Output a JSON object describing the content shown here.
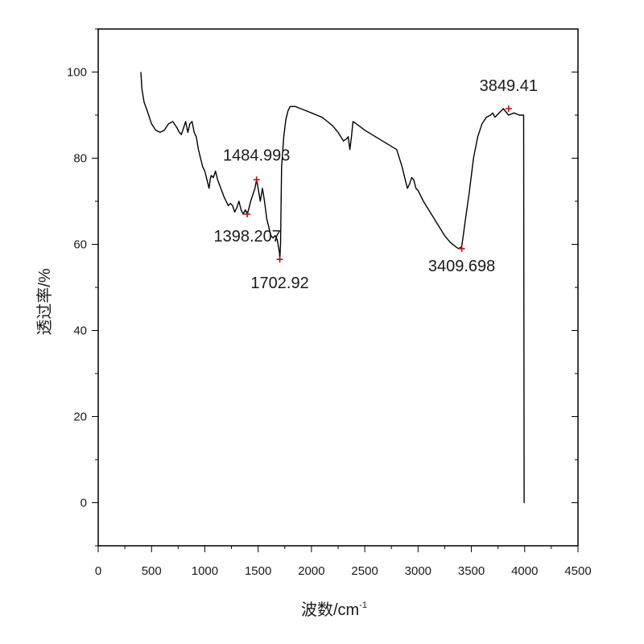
{
  "chart_data": {
    "type": "line",
    "xlabel": "波数/cm",
    "xlabel_sup": "-1",
    "ylabel": "透过率/%",
    "xlim": [
      0,
      4500
    ],
    "ylim": [
      -10,
      110
    ],
    "xticks": [
      0,
      500,
      1000,
      1500,
      2000,
      2500,
      3000,
      3500,
      4000,
      4500
    ],
    "yticks": [
      0,
      20,
      40,
      60,
      80,
      100
    ],
    "grid": false,
    "legend": "none",
    "line_color": "#000000",
    "marker_color": "#cc0000",
    "series": [
      {
        "x": [
          400,
          410,
          430,
          460,
          500,
          540,
          580,
          620,
          660,
          700,
          740,
          760,
          780,
          800,
          820,
          840,
          860,
          880,
          900,
          920,
          940,
          960,
          980,
          1000,
          1020,
          1040,
          1050,
          1060,
          1080,
          1100,
          1120,
          1150,
          1180,
          1200,
          1220,
          1240,
          1260,
          1280,
          1300,
          1320,
          1340,
          1360,
          1380,
          1398,
          1410,
          1430,
          1450,
          1470,
          1485,
          1500,
          1520,
          1540,
          1560,
          1580,
          1600,
          1620,
          1640,
          1660,
          1680,
          1700,
          1703,
          1710,
          1720,
          1740,
          1760,
          1780,
          1800,
          1820,
          1850,
          1900,
          1950,
          2000,
          2050,
          2100,
          2150,
          2200,
          2250,
          2300,
          2330,
          2345,
          2360,
          2375,
          2390,
          2420,
          2500,
          2600,
          2700,
          2800,
          2850,
          2880,
          2900,
          2920,
          2940,
          2960,
          2980,
          3000,
          3050,
          3100,
          3150,
          3200,
          3250,
          3300,
          3350,
          3380,
          3410,
          3440,
          3480,
          3520,
          3560,
          3600,
          3640,
          3680,
          3700,
          3720,
          3760,
          3800,
          3849,
          3900,
          3950,
          3980,
          3990,
          3995,
          3998
        ],
        "y": [
          100,
          96,
          93,
          91,
          88,
          86.5,
          86,
          86.5,
          88,
          88.5,
          87,
          86,
          85.5,
          87,
          88.5,
          86,
          88,
          88.5,
          86,
          85,
          82,
          80,
          78,
          77,
          75,
          73,
          75,
          76,
          75.5,
          77,
          75,
          73,
          71,
          70,
          69,
          69.5,
          69,
          67.5,
          68.5,
          70,
          68,
          67,
          68,
          67,
          68,
          70,
          71.5,
          73,
          75,
          73,
          70,
          73,
          70,
          66,
          64,
          62,
          61.5,
          62,
          61,
          58,
          56.5,
          60,
          78,
          85,
          89,
          91,
          92,
          92,
          92,
          91.5,
          91,
          90.5,
          90,
          89.5,
          88.5,
          87.5,
          86,
          84,
          84.5,
          85,
          82,
          85,
          88.5,
          88,
          86.5,
          85,
          83.5,
          82,
          78,
          75,
          73,
          74,
          75.5,
          75,
          73,
          72.5,
          70,
          68,
          66,
          64,
          62,
          60.5,
          59.5,
          59,
          59.5,
          65,
          72,
          80,
          85,
          88,
          89.5,
          90,
          90.5,
          89.5,
          90.5,
          91.5,
          90,
          90.5,
          90,
          90,
          90,
          0,
          0
        ]
      }
    ],
    "annotations": [
      {
        "label": "3849.41",
        "x": 3849.41,
        "y": 91.5
      },
      {
        "label": "1484.993",
        "x": 1484.993,
        "y": 75
      },
      {
        "label": "1398.207",
        "x": 1398.207,
        "y": 67
      },
      {
        "label": "1702.92",
        "x": 1702.92,
        "y": 56.5
      },
      {
        "label": "3409.698",
        "x": 3409.698,
        "y": 59
      }
    ]
  }
}
